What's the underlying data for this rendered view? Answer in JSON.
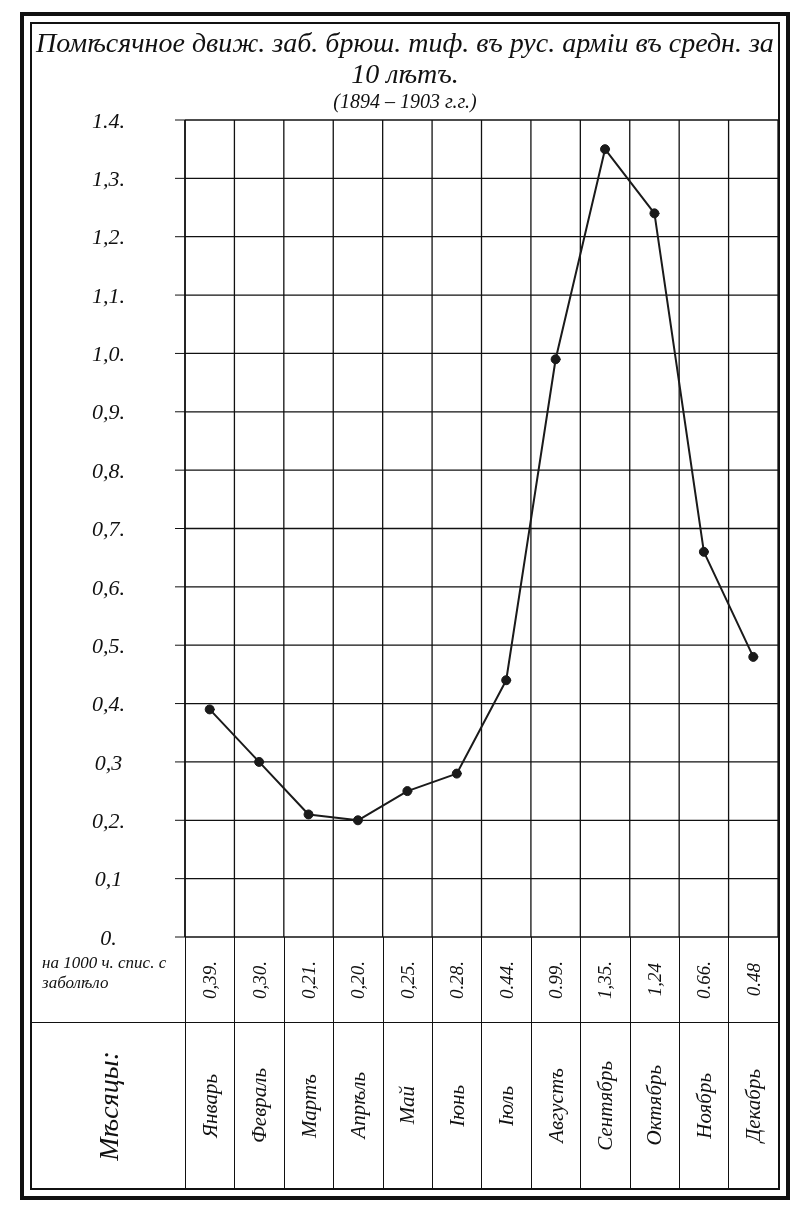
{
  "chart_data": {
    "type": "line",
    "title": "Помѣсячное движ. заб. брюш. тиф. въ рус. арміи въ средн. за 10 лѣтъ.",
    "subtitle": "(1894 – 1903 г.г.)",
    "ylabel": "на 1000 ч. спис. с заболѣло",
    "annotations": [
      "Мѣсяцы:"
    ],
    "categories": [
      "Январь",
      "Февраль",
      "Мартъ",
      "Апрѣль",
      "Май",
      "Іюнь",
      "Іюль",
      "Августъ",
      "Сентябрь",
      "Октябрь",
      "Ноябрь",
      "Декабрь"
    ],
    "values": [
      0.39,
      0.3,
      0.21,
      0.2,
      0.25,
      0.28,
      0.44,
      0.99,
      1.35,
      1.24,
      0.66,
      0.48
    ],
    "value_labels": [
      "0,39.",
      "0,30.",
      "0,21.",
      "0,20.",
      "0,25.",
      "0.28.",
      "0.44.",
      "0.99.",
      "1,35.",
      "1,24",
      "0.66.",
      "0.48"
    ],
    "color": "#1a1a1a",
    "ylim": [
      0,
      1.4
    ],
    "yticks": [
      {
        "value": 0,
        "label": "0."
      },
      {
        "value": 0.1,
        "label": "0,1"
      },
      {
        "value": 0.2,
        "label": "0,2."
      },
      {
        "value": 0.3,
        "label": "0,3"
      },
      {
        "value": 0.4,
        "label": "0,4."
      },
      {
        "value": 0.5,
        "label": "0,5."
      },
      {
        "value": 0.6,
        "label": "0,6."
      },
      {
        "value": 0.7,
        "label": "0,7."
      },
      {
        "value": 0.8,
        "label": "0,8."
      },
      {
        "value": 0.9,
        "label": "0,9."
      },
      {
        "value": 1.0,
        "label": "1,0."
      },
      {
        "value": 1.1,
        "label": "1,1."
      },
      {
        "value": 1.2,
        "label": "1,2."
      },
      {
        "value": 1.3,
        "label": "1,3."
      },
      {
        "value": 1.4,
        "label": "1.4."
      }
    ],
    "grid": true,
    "marker": "circle",
    "line_style": "solid"
  }
}
